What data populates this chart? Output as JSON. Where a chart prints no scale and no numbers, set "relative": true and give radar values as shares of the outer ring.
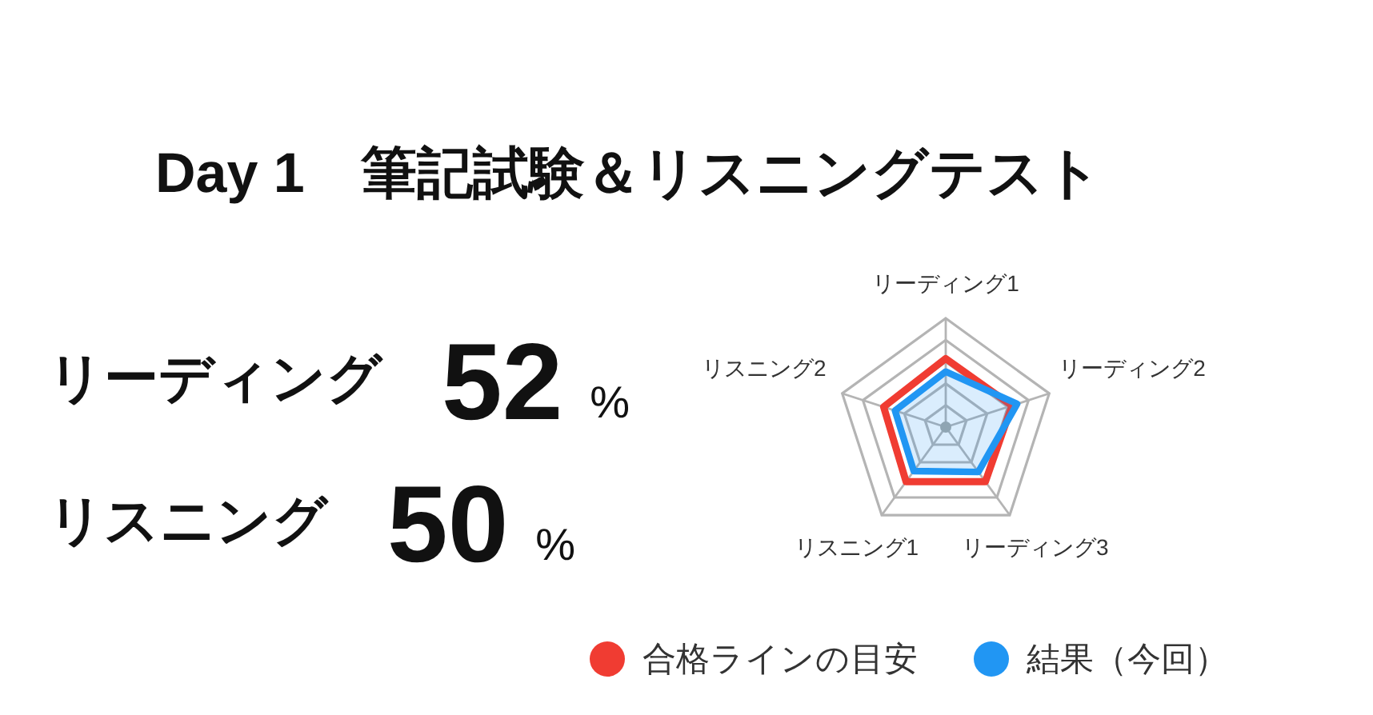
{
  "chart_data": [
    {
      "type": "other",
      "title": "Day 1　筆記試験＆リスニングテスト",
      "annotations": [
        "リーディング",
        "52",
        "%",
        "リスニング",
        "50",
        "%"
      ]
    },
    {
      "type": "radar",
      "relative": true,
      "grid": true,
      "legend": "bottom",
      "categories": [
        "リーディング1",
        "リーディング2",
        "リーディング3",
        "リスニング1",
        "リスニング2"
      ],
      "series": [
        {
          "name": "合格ラインの目安",
          "color": "#f03c32",
          "values": [
            0.63,
            0.64,
            0.62,
            0.62,
            0.6
          ]
        },
        {
          "name": "結果（今回）",
          "color": "#2196f3",
          "type": "area",
          "values": [
            0.51,
            0.69,
            0.51,
            0.5,
            0.49
          ]
        }
      ]
    }
  ]
}
